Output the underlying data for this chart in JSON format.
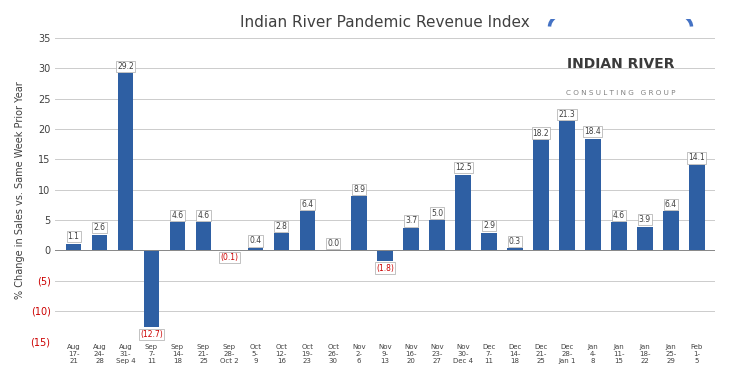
{
  "title": "Indian River Pandemic Revenue Index",
  "ylabel": "% Change in Sales vs. Same Week Prior Year",
  "categories": [
    "Aug\n17-\n21",
    "Aug\n24-\n28",
    "Aug\n31-\nSep 4",
    "Sep\n7-\n11",
    "Sep\n14-\n18",
    "Sep\n21-\n25",
    "Sep\n28-\nOct 2",
    "Oct\n5-\n9",
    "Oct\n12-\n16",
    "Oct\n19-\n23",
    "Oct\n26-\n30",
    "Nov\n2-\n6",
    "Nov\n9-\n13",
    "Nov\n16-\n20",
    "Nov\n23-\n27",
    "Nov\n30-\nDec 4",
    "Dec\n7-\n11",
    "Dec\n14-\n18",
    "Dec\n21-\n25",
    "Dec\n28-\nJan 1",
    "Jan\n4-\n8",
    "Jan\n11-\n15",
    "Jan\n18-\n22",
    "Jan\n25-\n29",
    "Feb\n1-\n5"
  ],
  "values": [
    1.1,
    2.6,
    29.2,
    -12.7,
    4.6,
    4.6,
    -0.1,
    0.4,
    2.8,
    6.4,
    0.0,
    8.9,
    -1.8,
    3.7,
    5.0,
    12.5,
    2.9,
    0.3,
    18.2,
    21.3,
    18.4,
    4.6,
    3.9,
    6.4,
    14.1
  ],
  "bar_color": "#2E5FA3",
  "label_color_positive": "#404040",
  "label_color_negative": "#CC0000",
  "background_color": "#FFFFFF",
  "grid_color": "#CCCCCC",
  "ylim": [
    -15,
    35
  ],
  "yticks": [
    -15,
    -10,
    -5,
    0,
    5,
    10,
    15,
    20,
    25,
    30,
    35
  ],
  "logo_text_main": "INDIAN RIVER",
  "logo_text_sub": "C O N S U L T I N G   G R O U P",
  "logo_arc_color": "#4472C4"
}
